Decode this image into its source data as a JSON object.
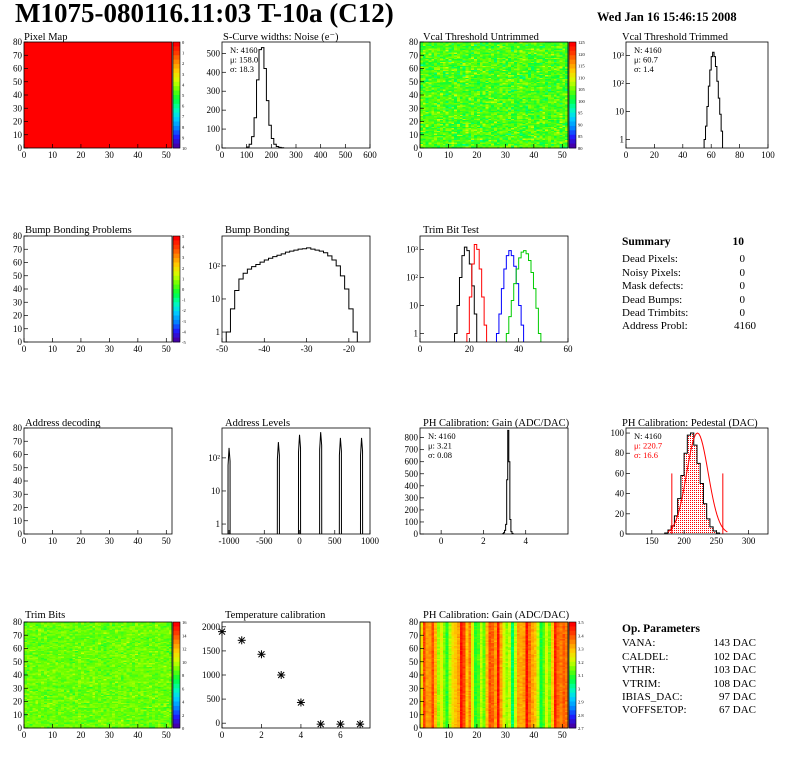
{
  "header": {
    "title": "M1075-080116.11:03 T-10a (C12)",
    "date": "Wed Jan 16 15:46:15 2008"
  },
  "palette": {
    "stops": [
      "#4400aa",
      "#1e1eff",
      "#008cff",
      "#00d2ff",
      "#00ffb4",
      "#00ff3c",
      "#64ff00",
      "#d2ff00",
      "#ffd200",
      "#ff8c00",
      "#ff3c00",
      "#ff0000"
    ]
  },
  "chart_data": [
    {
      "id": "pixel-map",
      "type": "heatmap",
      "title": "Pixel Map",
      "xlim": [
        0,
        52
      ],
      "ylim": [
        0,
        80
      ],
      "xticks": [
        0,
        10,
        20,
        30,
        40,
        50
      ],
      "yticks": [
        0,
        10,
        20,
        30,
        40,
        50,
        60,
        70,
        80
      ],
      "uniform_value": 10,
      "zlim": [
        0,
        10
      ],
      "zticks": [
        "0",
        "1",
        "2",
        "3",
        "4",
        "5",
        "6",
        "7",
        "8",
        "9",
        "10"
      ]
    },
    {
      "id": "scurve-noise",
      "type": "histogram",
      "title": "S-Curve widths: Noise (e⁻)",
      "xlim": [
        0,
        600
      ],
      "ylim": [
        0,
        560
      ],
      "xticks": [
        0,
        100,
        200,
        300,
        400,
        500,
        600
      ],
      "yticks": [
        0,
        100,
        200,
        300,
        400,
        500
      ],
      "stats": [
        {
          "label": "N: 4160"
        },
        {
          "label": "μ: 158.0"
        },
        {
          "label": "σ: 18.3"
        }
      ],
      "bin_width": 10,
      "x_start": 100,
      "values": [
        5,
        20,
        60,
        160,
        360,
        520,
        530,
        420,
        250,
        120,
        50,
        20,
        8,
        3,
        1
      ],
      "color": "#000000"
    },
    {
      "id": "vcal-untrimmed",
      "type": "heatmap",
      "title": "Vcal Threshold Untrimmed",
      "xlim": [
        0,
        52
      ],
      "ylim": [
        0,
        80
      ],
      "xticks": [
        0,
        10,
        20,
        30,
        40,
        50
      ],
      "yticks": [
        0,
        10,
        20,
        30,
        40,
        50,
        60,
        70,
        80
      ],
      "zlim": [
        35,
        125
      ],
      "zticks": [
        "125",
        "120",
        "115",
        "110",
        "105",
        "100",
        "95",
        "90",
        "85",
        "80"
      ],
      "mean": 0.52,
      "spread": 0.17,
      "seed": 11
    },
    {
      "id": "vcal-trimmed",
      "type": "histogram",
      "title": "Vcal Threshold Trimmed",
      "log": true,
      "xlim": [
        0,
        100
      ],
      "ylim": [
        0.5,
        3000
      ],
      "xticks": [
        0,
        20,
        40,
        60,
        80,
        100
      ],
      "ytick_labels": [
        {
          "v": 1,
          "t": "1"
        },
        {
          "v": 10,
          "t": "10"
        },
        {
          "v": 100,
          "t": "10²"
        },
        {
          "v": 1000,
          "t": "10³"
        }
      ],
      "stats": [
        {
          "label": "N: 4160"
        },
        {
          "label": "μ: 60.7"
        },
        {
          "label": "σ: 1.4"
        }
      ],
      "bin_width": 1,
      "x_start": 55,
      "values": [
        1,
        3,
        15,
        80,
        300,
        900,
        1300,
        900,
        400,
        120,
        30,
        8,
        2
      ],
      "color": "#000000"
    },
    {
      "id": "bump-bonding-problems",
      "type": "heatmap",
      "title": "Bump Bonding Problems",
      "xlim": [
        0,
        52
      ],
      "ylim": [
        0,
        80
      ],
      "xticks": [
        0,
        10,
        20,
        30,
        40,
        50
      ],
      "yticks": [
        0,
        10,
        20,
        30,
        40,
        50,
        60,
        70,
        80
      ],
      "empty": true,
      "zlim": [
        -5,
        5
      ],
      "zticks": [
        "5",
        "4",
        "3",
        "2",
        "1",
        "0",
        "-1",
        "-2",
        "-3",
        "-4",
        "-5"
      ]
    },
    {
      "id": "bump-bonding",
      "type": "histogram",
      "title": "Bump Bonding",
      "log": true,
      "xlim": [
        -50,
        -15
      ],
      "ylim": [
        0.5,
        800
      ],
      "xticks": [
        -50,
        -40,
        -30,
        -20
      ],
      "ytick_labels": [
        {
          "v": 1,
          "t": "1"
        },
        {
          "v": 10,
          "t": "10"
        },
        {
          "v": 100,
          "t": "10²"
        }
      ],
      "bin_width": 1,
      "x_start": -49,
      "values": [
        1,
        5,
        18,
        40,
        60,
        80,
        95,
        110,
        130,
        150,
        170,
        190,
        210,
        230,
        260,
        280,
        300,
        320,
        330,
        350,
        320,
        300,
        280,
        250,
        200,
        150,
        100,
        50,
        20,
        5,
        1
      ],
      "color": "#000000"
    },
    {
      "id": "trim-bit-test",
      "type": "histogram",
      "title": "Trim Bit Test",
      "log": true,
      "xlim": [
        0,
        60
      ],
      "ylim": [
        0.5,
        3000
      ],
      "xticks": [
        0,
        20,
        40,
        60
      ],
      "ytick_labels": [
        {
          "v": 1,
          "t": "1"
        },
        {
          "v": 10,
          "t": "10"
        },
        {
          "v": 100,
          "t": "10²"
        },
        {
          "v": 1000,
          "t": "10³"
        }
      ],
      "series": [
        {
          "name": "",
          "color": "#000000",
          "x_start": 14,
          "bin_width": 1,
          "values": [
            1,
            10,
            100,
            600,
            1200,
            900,
            300,
            50,
            5
          ]
        },
        {
          "name": "",
          "color": "#ff0000",
          "x_start": 19,
          "bin_width": 1,
          "values": [
            1,
            20,
            300,
            1500,
            1000,
            200,
            20,
            2
          ]
        },
        {
          "name": "",
          "color": "#0000ff",
          "x_start": 31,
          "bin_width": 1,
          "values": [
            1,
            5,
            40,
            200,
            600,
            900,
            600,
            250,
            60,
            10,
            2
          ]
        },
        {
          "name": "",
          "color": "#00cc00",
          "x_start": 35,
          "bin_width": 1,
          "values": [
            1,
            4,
            15,
            60,
            200,
            500,
            800,
            900,
            700,
            400,
            150,
            40,
            8,
            1
          ]
        }
      ]
    },
    {
      "id": "address-decoding",
      "type": "heatmap",
      "title": "Address decoding",
      "xlim": [
        0,
        52
      ],
      "ylim": [
        0,
        80
      ],
      "xticks": [
        0,
        10,
        20,
        30,
        40,
        50
      ],
      "yticks": [
        0,
        10,
        20,
        30,
        40,
        50,
        60,
        70,
        80
      ],
      "empty": true,
      "no_palette": true
    },
    {
      "id": "address-levels",
      "type": "histogram",
      "title": "Address Levels",
      "log": true,
      "xlim": [
        -1100,
        1000
      ],
      "ylim": [
        0.5,
        800
      ],
      "xticks": [
        -1000,
        -500,
        0,
        500,
        1000
      ],
      "ytick_labels": [
        {
          "v": 1,
          "t": "1"
        },
        {
          "v": 10,
          "t": "10"
        },
        {
          "v": 100,
          "t": "10²"
        }
      ],
      "spikes": [
        {
          "x": -1000,
          "h": 200
        },
        {
          "x": -300,
          "h": 300
        },
        {
          "x": 0,
          "h": 500
        },
        {
          "x": 300,
          "h": 600
        },
        {
          "x": 580,
          "h": 400
        },
        {
          "x": 880,
          "h": 400
        }
      ],
      "spike_width": 30,
      "color": "#000000"
    },
    {
      "id": "ph-gain",
      "type": "histogram",
      "title": "PH Calibration: Gain (ADC/DAC)",
      "xlim": [
        -1,
        6
      ],
      "ylim": [
        0,
        880
      ],
      "xticks": [
        0,
        2,
        4
      ],
      "yticks": [
        0,
        100,
        200,
        300,
        400,
        500,
        600,
        700,
        800
      ],
      "stats": [
        {
          "label": "N: 4160"
        },
        {
          "label": "μ: 3.21"
        },
        {
          "label": "σ: 0.08"
        }
      ],
      "bin_width": 0.05,
      "x_start": 2.9,
      "values": [
        2,
        10,
        30,
        80,
        450,
        860,
        600,
        120,
        20,
        5
      ],
      "color": "#000000"
    },
    {
      "id": "ph-pedestal",
      "type": "histogram",
      "title": "PH Calibration: Pedestal (DAC)",
      "xlim": [
        110,
        330
      ],
      "ylim": [
        0,
        105
      ],
      "xticks": [
        150,
        200,
        250,
        300
      ],
      "yticks": [
        0,
        20,
        40,
        60,
        80,
        100
      ],
      "stats": [
        {
          "label": "N: 4160",
          "color": "#000000"
        },
        {
          "label": "μ: 220.7",
          "color": "#ff0000"
        },
        {
          "label": "σ: 16.6",
          "color": "#ff0000"
        }
      ],
      "bin_width": 5,
      "x_start": 170,
      "values": [
        1,
        4,
        8,
        18,
        35,
        58,
        80,
        98,
        100,
        88,
        70,
        50,
        30,
        15,
        7,
        3,
        1
      ],
      "fit_lines_x": [
        181,
        260
      ],
      "hatch_color": "#ff0000",
      "color": "#000000"
    },
    {
      "id": "trim-bits",
      "type": "heatmap",
      "title": "Trim Bits",
      "xlim": [
        0,
        52
      ],
      "ylim": [
        0,
        80
      ],
      "xticks": [
        0,
        10,
        20,
        30,
        40,
        50
      ],
      "yticks": [
        0,
        10,
        20,
        30,
        40,
        50,
        60,
        70,
        80
      ],
      "zlim": [
        0,
        16
      ],
      "zticks": [
        "16",
        "14",
        "12",
        "10",
        "8",
        "6",
        "4",
        "2",
        "0"
      ],
      "mean": 0.55,
      "spread": 0.1,
      "seed": 23
    },
    {
      "id": "temperature-calibration",
      "type": "scatter",
      "title": "Temperature calibration",
      "xlim": [
        0,
        7.5
      ],
      "ylim": [
        -100,
        2100
      ],
      "xticks": [
        0,
        2,
        4,
        6
      ],
      "yticks": [
        0,
        500,
        1000,
        1500,
        2000
      ],
      "points": [
        [
          0,
          1900
        ],
        [
          1,
          1720
        ],
        [
          2,
          1430
        ],
        [
          3,
          1000
        ],
        [
          4,
          430
        ],
        [
          5,
          -20
        ],
        [
          6,
          -20
        ],
        [
          7,
          -20
        ]
      ],
      "marker": "*"
    },
    {
      "id": "ph-gain-map",
      "type": "heatmap",
      "title": "PH Calibration: Gain (ADC/DAC)",
      "xlim": [
        0,
        52
      ],
      "ylim": [
        0,
        80
      ],
      "xticks": [
        0,
        10,
        20,
        30,
        40,
        50
      ],
      "yticks": [
        0,
        10,
        20,
        30,
        40,
        50,
        60,
        70,
        80
      ],
      "zlim": [
        2.7,
        3.5
      ],
      "zticks": [
        "3.5",
        "3.4",
        "3.3",
        "3.2",
        "3.1",
        "3",
        "2.9",
        "2.8",
        "2.7"
      ],
      "column_pattern": true,
      "seed": 37
    }
  ],
  "summary": {
    "title": "Summary",
    "count": "10",
    "rows": [
      {
        "label": "Dead Pixels:",
        "value": "0"
      },
      {
        "label": "Noisy Pixels:",
        "value": "0"
      },
      {
        "label": "Mask defects:",
        "value": "0"
      },
      {
        "label": "Dead Bumps:",
        "value": "0"
      },
      {
        "label": "Dead Trimbits:",
        "value": "0"
      },
      {
        "label": "Address Probl:",
        "value": "4160"
      }
    ]
  },
  "op_params": {
    "title": "Op. Parameters",
    "rows": [
      {
        "label": "VANA:",
        "value": "143 DAC"
      },
      {
        "label": "CALDEL:",
        "value": "102 DAC"
      },
      {
        "label": "VTHR:",
        "value": "103 DAC"
      },
      {
        "label": "VTRIM:",
        "value": "108 DAC"
      },
      {
        "label": "IBIAS_DAC:",
        "value": "97 DAC"
      },
      {
        "label": "VOFFSETOP:",
        "value": "67 DAC"
      }
    ]
  }
}
